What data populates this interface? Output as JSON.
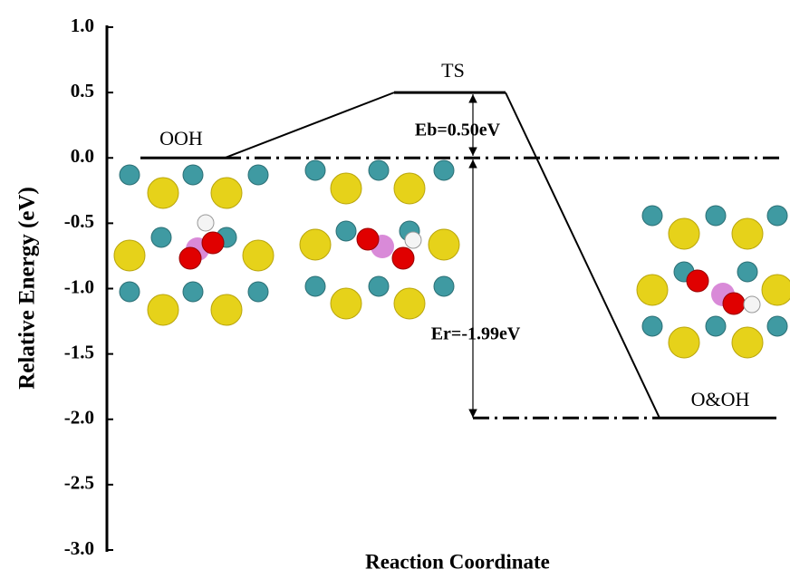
{
  "chart_data": {
    "type": "profile",
    "ylabel": "Relative Energy (eV)",
    "xlabel": "Reaction Coordinate",
    "categories": [
      "OOH",
      "TS",
      "O&OH"
    ],
    "values": [
      0,
      0.5,
      -1.99
    ],
    "annotations": [
      "Eb=0.50eV",
      "Er=-1.99eV"
    ],
    "ylim": [
      -3.0,
      1.0
    ],
    "yticks": [
      {
        "value": 1,
        "label": "1.0"
      },
      0.5,
      {
        "value": 0,
        "label": "0.0"
      },
      -0.5,
      {
        "value": -1,
        "label": "-1.0"
      },
      -1.5,
      {
        "value": -2,
        "label": "-2.0"
      },
      -2.5,
      {
        "value": -3,
        "label": "-3.0"
      }
    ],
    "color": "#000000"
  }
}
